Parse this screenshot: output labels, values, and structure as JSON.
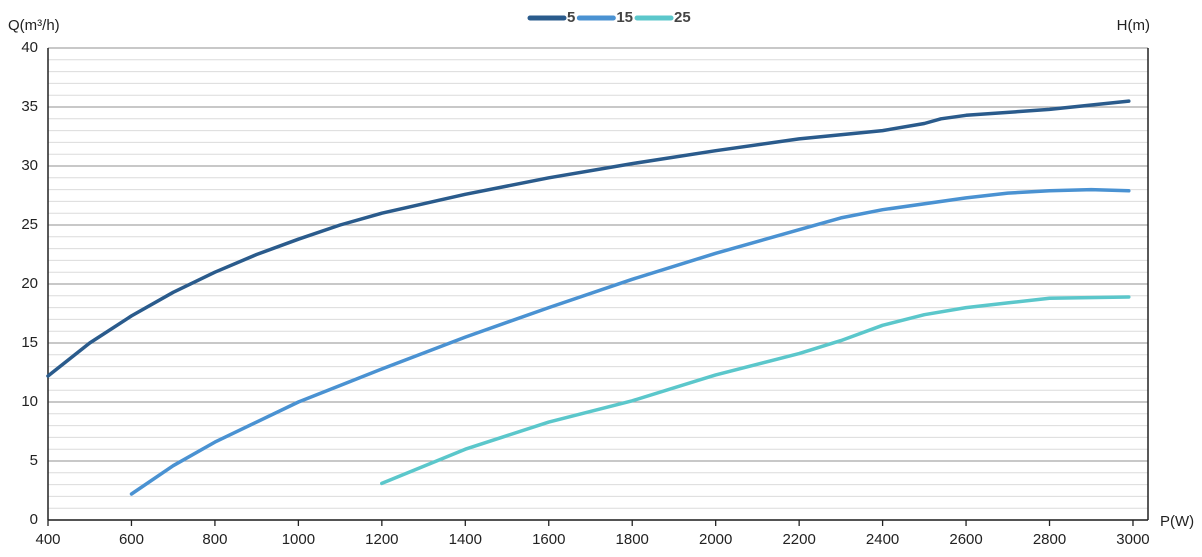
{
  "chart_data": {
    "type": "line",
    "y_label": "Q(m³/h)",
    "y2_label": "H(m)",
    "x_label": "P(W)",
    "xlim": [
      400,
      3036
    ],
    "xticks": [
      400,
      600,
      800,
      1000,
      1200,
      1400,
      1600,
      1800,
      2000,
      2200,
      2400,
      2600,
      2800,
      3000
    ],
    "ylim": [
      0,
      40
    ],
    "yticks": [
      0,
      5,
      10,
      15,
      20,
      25,
      30,
      35,
      40
    ],
    "minor_yticks": [
      1,
      2,
      3,
      4,
      6,
      7,
      8,
      9,
      11,
      12,
      13,
      14,
      16,
      17,
      18,
      19,
      21,
      22,
      23,
      24,
      26,
      27,
      28,
      29,
      31,
      32,
      33,
      34,
      36,
      37,
      38,
      39
    ],
    "grid": true,
    "legend": "top",
    "series": [
      {
        "name": "5",
        "color": "#2a5b8c",
        "x": [
          400,
          500,
          600,
          700,
          800,
          900,
          1000,
          1100,
          1200,
          1400,
          1600,
          1800,
          2000,
          2200,
          2400,
          2500,
          2540,
          2600,
          2800,
          2990
        ],
        "values": [
          12.2,
          15,
          17.3,
          19.3,
          21,
          22.5,
          23.8,
          25,
          26,
          27.6,
          29,
          30.2,
          31.3,
          32.3,
          33,
          33.6,
          34,
          34.3,
          34.8,
          35.5
        ]
      },
      {
        "name": "15",
        "color": "#4a92d2",
        "x": [
          600,
          700,
          800,
          1000,
          1200,
          1400,
          1600,
          1800,
          2000,
          2200,
          2300,
          2400,
          2600,
          2700,
          2800,
          2900,
          2990
        ],
        "values": [
          2.2,
          4.6,
          6.6,
          10,
          12.8,
          15.5,
          18,
          20.4,
          22.6,
          24.6,
          25.6,
          26.3,
          27.3,
          27.7,
          27.9,
          28,
          27.9
        ]
      },
      {
        "name": "25",
        "color": "#5bc7cb",
        "x": [
          1200,
          1400,
          1600,
          1800,
          2000,
          2200,
          2300,
          2400,
          2500,
          2600,
          2700,
          2800,
          2990
        ],
        "values": [
          3.1,
          6,
          8.3,
          10.1,
          12.3,
          14.1,
          15.2,
          16.5,
          17.4,
          18,
          18.4,
          18.8,
          18.9
        ]
      }
    ]
  }
}
